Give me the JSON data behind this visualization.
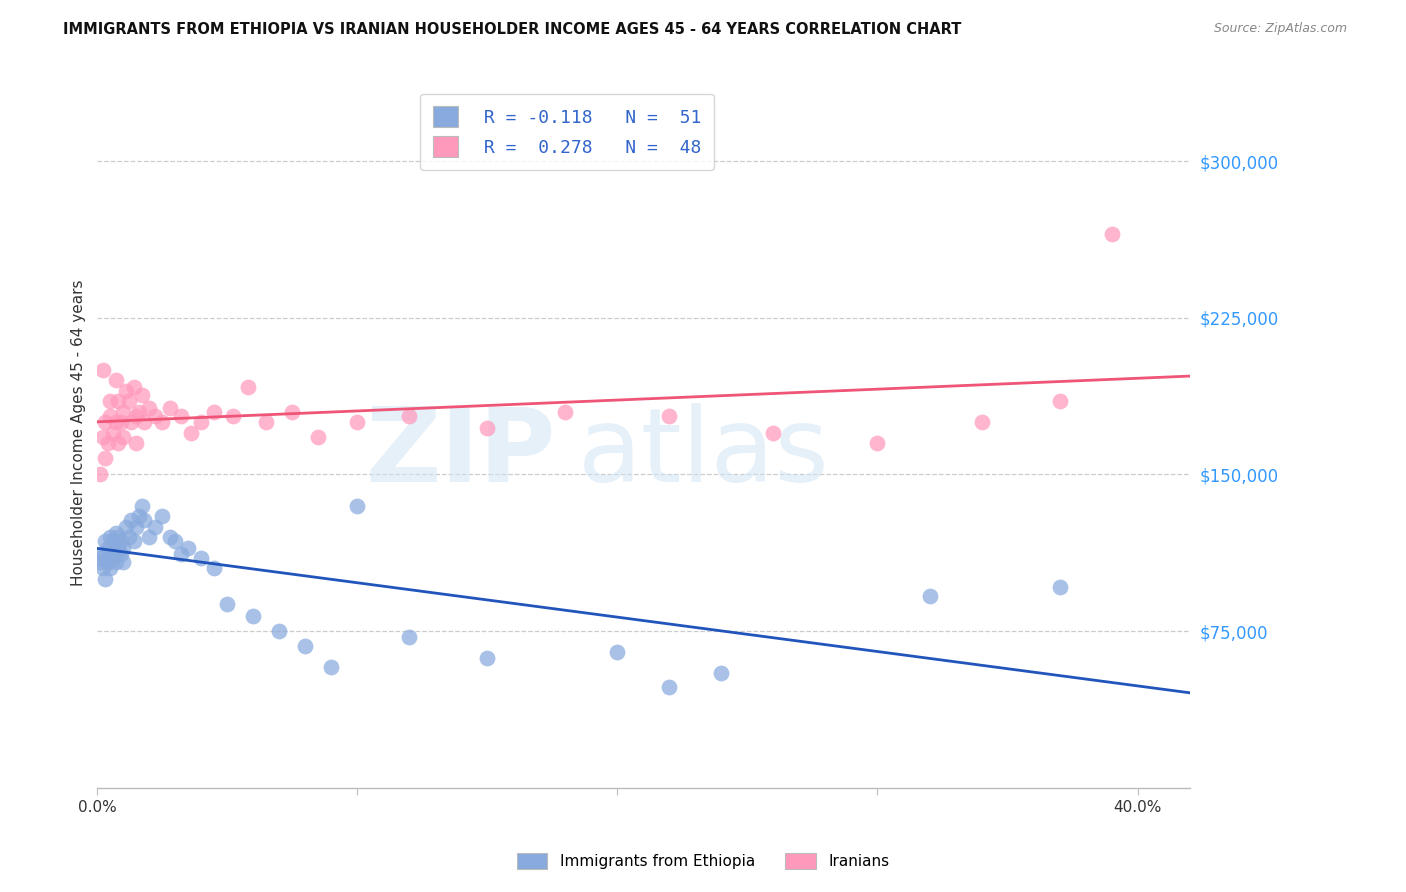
{
  "title": "IMMIGRANTS FROM ETHIOPIA VS IRANIAN HOUSEHOLDER INCOME AGES 45 - 64 YEARS CORRELATION CHART",
  "source": "Source: ZipAtlas.com",
  "ylabel": "Householder Income Ages 45 - 64 years",
  "xlim": [
    0.0,
    0.42
  ],
  "ylim": [
    0,
    340000
  ],
  "yticks": [
    75000,
    150000,
    225000,
    300000
  ],
  "ytick_labels": [
    "$75,000",
    "$150,000",
    "$225,000",
    "$300,000"
  ],
  "color_ethiopia": "#88AADD",
  "color_iran": "#FF99BB",
  "color_line_ethiopia": "#2255BB",
  "color_line_iran": "#EE5577",
  "color_text_blue": "#3377CC",
  "color_ytick_labels": "#3399FF",
  "legend_text_color": "#3366CC",
  "ethiopia_x": [
    0.001,
    0.001,
    0.002,
    0.002,
    0.003,
    0.003,
    0.004,
    0.004,
    0.005,
    0.005,
    0.005,
    0.006,
    0.006,
    0.007,
    0.007,
    0.008,
    0.008,
    0.009,
    0.009,
    0.01,
    0.01,
    0.011,
    0.012,
    0.013,
    0.014,
    0.015,
    0.016,
    0.017,
    0.018,
    0.02,
    0.022,
    0.025,
    0.028,
    0.03,
    0.032,
    0.035,
    0.04,
    0.045,
    0.05,
    0.06,
    0.07,
    0.08,
    0.09,
    0.1,
    0.12,
    0.15,
    0.2,
    0.22,
    0.24,
    0.32,
    0.37
  ],
  "ethiopia_y": [
    110000,
    108000,
    105000,
    112000,
    118000,
    100000,
    108000,
    115000,
    112000,
    120000,
    105000,
    118000,
    110000,
    122000,
    108000,
    115000,
    120000,
    112000,
    118000,
    108000,
    115000,
    125000,
    120000,
    128000,
    118000,
    125000,
    130000,
    135000,
    128000,
    120000,
    125000,
    130000,
    120000,
    118000,
    112000,
    115000,
    110000,
    105000,
    88000,
    82000,
    75000,
    68000,
    58000,
    135000,
    72000,
    62000,
    65000,
    48000,
    55000,
    92000,
    96000
  ],
  "iran_x": [
    0.001,
    0.002,
    0.002,
    0.003,
    0.003,
    0.004,
    0.005,
    0.005,
    0.006,
    0.007,
    0.007,
    0.008,
    0.008,
    0.009,
    0.01,
    0.01,
    0.011,
    0.012,
    0.013,
    0.014,
    0.015,
    0.015,
    0.016,
    0.017,
    0.018,
    0.02,
    0.022,
    0.025,
    0.028,
    0.032,
    0.036,
    0.04,
    0.045,
    0.052,
    0.058,
    0.065,
    0.075,
    0.085,
    0.1,
    0.12,
    0.15,
    0.18,
    0.22,
    0.26,
    0.3,
    0.34,
    0.37,
    0.39
  ],
  "iran_y": [
    150000,
    168000,
    200000,
    158000,
    175000,
    165000,
    178000,
    185000,
    170000,
    175000,
    195000,
    165000,
    185000,
    175000,
    180000,
    168000,
    190000,
    185000,
    175000,
    192000,
    178000,
    165000,
    180000,
    188000,
    175000,
    182000,
    178000,
    175000,
    182000,
    178000,
    170000,
    175000,
    180000,
    178000,
    192000,
    175000,
    180000,
    168000,
    175000,
    178000,
    172000,
    180000,
    178000,
    170000,
    165000,
    175000,
    185000,
    265000
  ]
}
